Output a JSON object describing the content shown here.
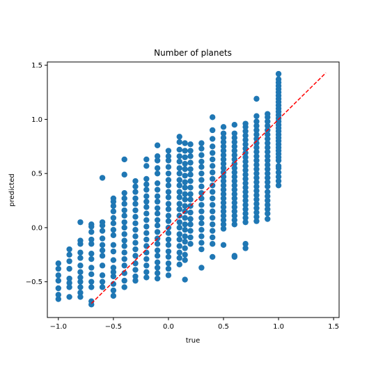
{
  "chart_data": {
    "type": "scatter",
    "title": "Number of planets",
    "xlabel": "true",
    "ylabel": "predicted",
    "xlim": [
      -1.1,
      1.55
    ],
    "ylim": [
      -0.83,
      1.53
    ],
    "xticks": [
      -1.0,
      -0.5,
      0.0,
      0.5,
      1.0,
      1.5
    ],
    "xtick_labels": [
      "−1.0",
      "−0.5",
      "0.0",
      "0.5",
      "1.0",
      "1.5"
    ],
    "yticks": [
      -0.5,
      0.0,
      0.5,
      1.0,
      1.5
    ],
    "ytick_labels": [
      "−0.5",
      "0.0",
      "0.5",
      "1.0",
      "1.5"
    ],
    "grid": false,
    "marker_color": "#1f77b4",
    "reference_line": {
      "x": [
        -0.7,
        1.43
      ],
      "y": [
        -0.7,
        1.43
      ],
      "color": "#ff0000",
      "style": "dashed"
    },
    "columns": [
      {
        "x": -1.0,
        "y": [
          -0.66,
          -0.62,
          -0.56,
          -0.49,
          -0.44,
          -0.38,
          -0.33
        ]
      },
      {
        "x": -0.9,
        "y": [
          -0.64,
          -0.55,
          -0.51,
          -0.47,
          -0.38,
          -0.31,
          -0.25,
          -0.2
        ]
      },
      {
        "x": -0.8,
        "y": [
          -0.64,
          -0.6,
          -0.55,
          -0.5,
          -0.46,
          -0.41,
          -0.35,
          -0.28,
          -0.23,
          -0.15,
          -0.12,
          0.05
        ]
      },
      {
        "x": -0.7,
        "y": [
          -0.71,
          -0.68,
          -0.55,
          -0.5,
          -0.43,
          -0.37,
          -0.29,
          -0.24,
          -0.15,
          -0.11,
          -0.04,
          0.01,
          0.03
        ]
      },
      {
        "x": -0.6,
        "y": [
          -0.55,
          -0.5,
          -0.44,
          -0.35,
          -0.26,
          -0.21,
          -0.16,
          -0.1,
          -0.03,
          0.02,
          0.05,
          0.46
        ]
      },
      {
        "x": -0.5,
        "y": [
          -0.63,
          -0.58,
          -0.52,
          -0.45,
          -0.41,
          -0.37,
          -0.3,
          -0.22,
          -0.16,
          -0.07,
          -0.02,
          0.04,
          0.09,
          0.15,
          0.2,
          0.24,
          0.27
        ]
      },
      {
        "x": -0.4,
        "y": [
          -0.55,
          -0.49,
          -0.42,
          -0.35,
          -0.29,
          -0.23,
          -0.17,
          -0.12,
          -0.06,
          0.0,
          0.05,
          0.11,
          0.16,
          0.22,
          0.27,
          0.32,
          0.49,
          0.63
        ]
      },
      {
        "x": -0.3,
        "y": [
          -0.49,
          -0.45,
          -0.39,
          -0.33,
          -0.26,
          -0.2,
          -0.14,
          -0.08,
          -0.02,
          0.04,
          0.1,
          0.16,
          0.22,
          0.27,
          0.33,
          0.38,
          0.43
        ]
      },
      {
        "x": -0.2,
        "y": [
          -0.46,
          -0.41,
          -0.35,
          -0.29,
          -0.23,
          -0.17,
          -0.11,
          -0.05,
          0.01,
          0.07,
          0.13,
          0.19,
          0.24,
          0.29,
          0.35,
          0.4,
          0.45,
          0.57,
          0.63
        ]
      },
      {
        "x": -0.1,
        "y": [
          -0.47,
          -0.42,
          -0.37,
          -0.32,
          -0.26,
          -0.21,
          -0.15,
          -0.1,
          -0.04,
          0.02,
          0.07,
          0.13,
          0.18,
          0.24,
          0.29,
          0.35,
          0.41,
          0.5,
          0.55,
          0.62,
          0.66,
          0.76
        ]
      },
      {
        "x": 0.0,
        "y": [
          -0.44,
          -0.38,
          -0.33,
          -0.27,
          -0.22,
          -0.16,
          -0.11,
          -0.05,
          0.0,
          0.06,
          0.11,
          0.17,
          0.22,
          0.28,
          0.33,
          0.39,
          0.44,
          0.5,
          0.56,
          0.62,
          0.66,
          0.71
        ]
      },
      {
        "x": 0.1,
        "y": [
          -0.34,
          -0.28,
          -0.23,
          -0.17,
          -0.11,
          -0.06,
          0.0,
          0.05,
          0.11,
          0.17,
          0.22,
          0.28,
          0.33,
          0.39,
          0.44,
          0.5,
          0.55,
          0.61,
          0.66,
          0.72,
          0.79,
          0.84
        ]
      },
      {
        "x": 0.15,
        "y": [
          -0.48,
          -0.3,
          -0.25,
          -0.19,
          -0.13,
          -0.08,
          -0.02,
          0.03,
          0.09,
          0.15,
          0.2,
          0.26,
          0.31,
          0.37,
          0.42,
          0.48,
          0.54,
          0.59,
          0.65,
          0.71,
          0.78
        ]
      },
      {
        "x": 0.2,
        "y": [
          -0.15,
          -0.09,
          -0.03,
          0.03,
          0.08,
          0.14,
          0.2,
          0.26,
          0.31,
          0.37,
          0.43,
          0.49,
          0.54,
          0.6,
          0.66,
          0.71,
          0.77
        ]
      },
      {
        "x": 0.3,
        "y": [
          -0.37,
          -0.2,
          -0.14,
          -0.08,
          -0.02,
          0.04,
          0.09,
          0.15,
          0.21,
          0.27,
          0.32,
          0.38,
          0.44,
          0.5,
          0.56,
          0.61,
          0.67,
          0.73,
          0.78
        ]
      },
      {
        "x": 0.4,
        "y": [
          -0.27,
          -0.15,
          -0.09,
          -0.03,
          0.03,
          0.09,
          0.15,
          0.21,
          0.27,
          0.33,
          0.39,
          0.45,
          0.51,
          0.57,
          0.63,
          0.69,
          0.75,
          0.82,
          0.9,
          1.02
        ]
      },
      {
        "x": 0.5,
        "y": [
          -0.16,
          -0.01,
          0.03,
          0.07,
          0.11,
          0.15,
          0.19,
          0.23,
          0.27,
          0.31,
          0.35,
          0.39,
          0.43,
          0.47,
          0.51,
          0.55,
          0.59,
          0.63,
          0.67,
          0.71,
          0.75,
          0.79,
          0.83,
          0.87,
          0.93
        ]
      },
      {
        "x": 0.6,
        "y": [
          -0.27,
          -0.26,
          0.03,
          0.07,
          0.11,
          0.15,
          0.19,
          0.23,
          0.27,
          0.31,
          0.35,
          0.39,
          0.43,
          0.47,
          0.51,
          0.55,
          0.59,
          0.63,
          0.67,
          0.71,
          0.75,
          0.79,
          0.83,
          0.87,
          0.95
        ]
      },
      {
        "x": 0.7,
        "y": [
          -0.19,
          -0.15,
          0.05,
          0.09,
          0.13,
          0.17,
          0.21,
          0.25,
          0.29,
          0.33,
          0.37,
          0.41,
          0.45,
          0.49,
          0.53,
          0.57,
          0.61,
          0.65,
          0.69,
          0.73,
          0.77,
          0.81,
          0.85,
          0.89,
          0.93,
          0.96
        ]
      },
      {
        "x": 0.8,
        "y": [
          0.06,
          0.1,
          0.14,
          0.18,
          0.22,
          0.26,
          0.3,
          0.34,
          0.38,
          0.42,
          0.46,
          0.5,
          0.54,
          0.58,
          0.62,
          0.66,
          0.7,
          0.74,
          0.78,
          0.82,
          0.86,
          0.9,
          0.94,
          0.98,
          1.03,
          1.19
        ]
      },
      {
        "x": 0.9,
        "y": [
          0.08,
          0.13,
          0.17,
          0.21,
          0.25,
          0.29,
          0.33,
          0.38,
          0.42,
          0.46,
          0.5,
          0.54,
          0.58,
          0.62,
          0.66,
          0.7,
          0.74,
          0.78,
          0.82,
          0.86,
          0.9,
          0.94,
          0.98,
          1.02,
          1.05
        ]
      },
      {
        "x": 1.0,
        "y": [
          0.39,
          0.43,
          0.47,
          0.51,
          0.55,
          0.57,
          0.62,
          0.65,
          0.68,
          0.71,
          0.74,
          0.77,
          0.8,
          0.83,
          0.86,
          0.89,
          0.92,
          0.95,
          0.98,
          1.01,
          1.04,
          1.07,
          1.1,
          1.13,
          1.16,
          1.19,
          1.22,
          1.25,
          1.28,
          1.31,
          1.34,
          1.37,
          1.42
        ]
      }
    ]
  }
}
